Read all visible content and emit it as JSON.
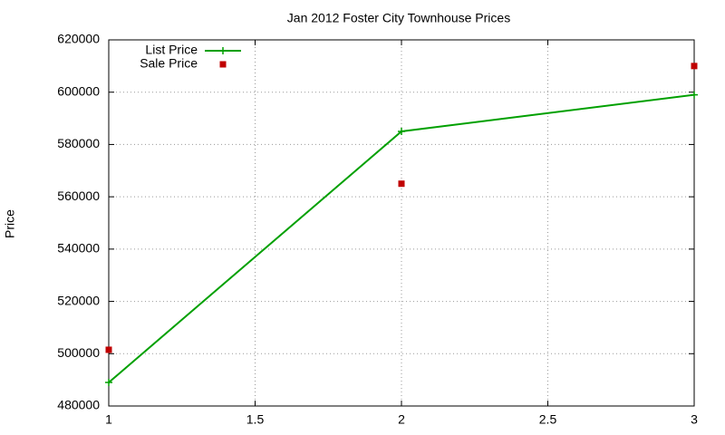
{
  "chart_data": {
    "type": "line",
    "title": "Jan 2012 Foster City Townhouse Prices",
    "y_label": "Price",
    "x": [
      1,
      2,
      3
    ],
    "series": [
      {
        "name": "List Price",
        "color": "#00a000",
        "style": "linespoints",
        "values": [
          489000,
          585000,
          599000
        ]
      },
      {
        "name": "Sale Price",
        "color": "#c00000",
        "style": "points",
        "values": [
          501500,
          565000,
          610000
        ]
      }
    ],
    "xlim": [
      1,
      3
    ],
    "xticks": [
      1,
      1.5,
      2,
      2.5,
      3
    ],
    "ylim": [
      480000,
      620000
    ],
    "yticks": [
      480000,
      500000,
      520000,
      540000,
      560000,
      580000,
      600000,
      620000
    ],
    "grid": true,
    "legend": "top-left"
  }
}
